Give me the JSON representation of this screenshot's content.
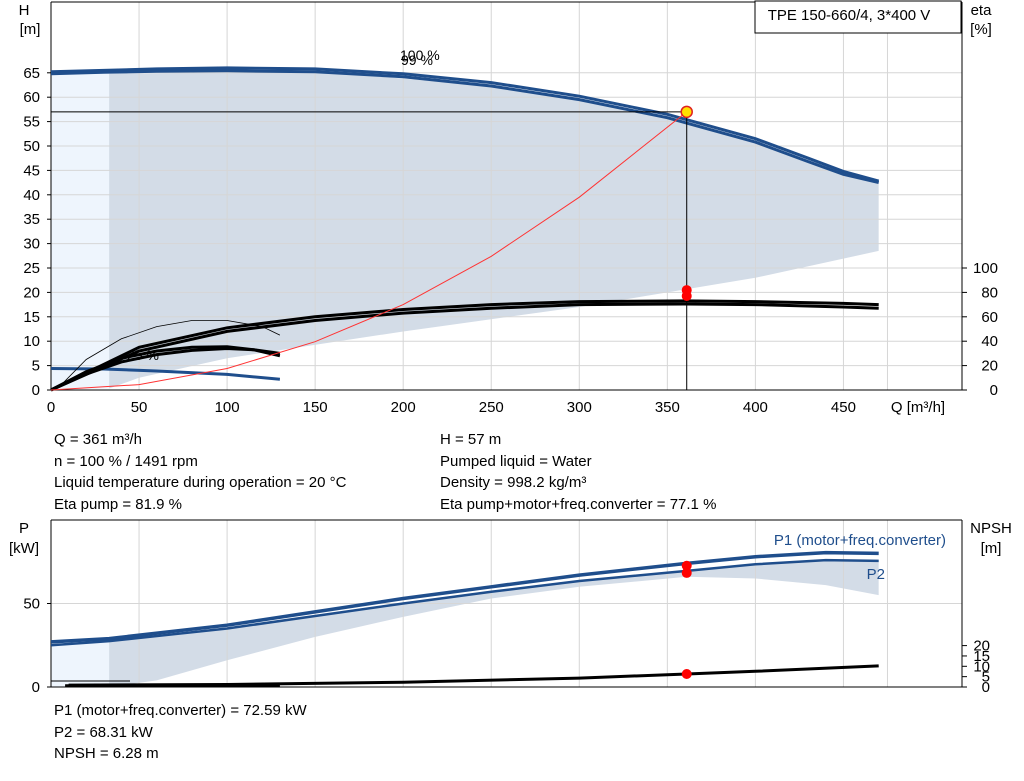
{
  "product_label": "TPE 150-660/4, 3*400 V",
  "colors": {
    "area": "#d3dce7",
    "area_light": "#eef5fd",
    "curve_blue": "#1f4e8c",
    "curve_black": "#000000",
    "system_curve": "#ff3333",
    "duty_marker": "#ff0000",
    "duty_point_fill": "#ffe000",
    "grid": "#d6d6d6"
  },
  "chart_data": [
    {
      "id": "head_eta",
      "type": "line",
      "x_label": "Q [m³/h]",
      "y_left_label_line1": "H",
      "y_left_label_line2": "[m]",
      "y_right_label_line1": "eta",
      "y_right_label_line2": "[%]",
      "x_ticks": [
        "0",
        "50",
        "100",
        "150",
        "200",
        "250",
        "300",
        "350",
        "400",
        "450"
      ],
      "y_left_ticks": [
        "0",
        "5",
        "10",
        "15",
        "20",
        "25",
        "30",
        "35",
        "40",
        "45",
        "50",
        "55",
        "60",
        "65"
      ],
      "y_right_ticks": [
        "0",
        "20",
        "40",
        "60",
        "80",
        "100"
      ],
      "xlim": [
        0,
        500
      ],
      "ylim": [
        0,
        70
      ],
      "grid": true,
      "speed_labels": [
        "100 %",
        "99 %",
        "25 %"
      ],
      "series": [
        {
          "kind": "head",
          "x": [
            0,
            30,
            60,
            100,
            150,
            200,
            250,
            300,
            350,
            400,
            430,
            450,
            470
          ],
          "y": [
            65.2,
            65.5,
            65.8,
            66,
            65.8,
            64.8,
            63,
            60.2,
            56.5,
            51.5,
            47.5,
            44.8,
            42.8
          ]
        },
        {
          "kind": "head",
          "x": [
            0,
            30,
            60,
            100,
            150,
            200,
            250,
            300,
            350,
            400,
            430,
            450,
            470
          ],
          "y": [
            64.8,
            65.1,
            65.3,
            65.4,
            65.2,
            64.2,
            62.3,
            59.5,
            55.8,
            50.8,
            46.8,
            44.2,
            42.5
          ]
        },
        {
          "kind": "head",
          "x": [
            0,
            30,
            60,
            100,
            130
          ],
          "y": [
            4.4,
            4.3,
            3.9,
            3.2,
            2.2
          ]
        },
        {
          "kind": "efficiency",
          "x": [
            0,
            50,
            100,
            150,
            200,
            250,
            300,
            360,
            400,
            450,
            470
          ],
          "y": [
            0,
            35,
            51,
            60,
            66,
            70,
            72.5,
            73,
            72.5,
            71,
            70
          ]
        },
        {
          "kind": "efficiency",
          "x": [
            0,
            50,
            100,
            150,
            200,
            250,
            300,
            360,
            400,
            450,
            470
          ],
          "y": [
            0,
            32,
            48,
            57,
            63,
            67,
            70,
            70.5,
            70,
            68,
            67
          ]
        },
        {
          "kind": "efficiency",
          "x": [
            0,
            20,
            40,
            60,
            80,
            100,
            115,
            130
          ],
          "y": [
            0,
            15,
            26,
            32,
            35,
            35.5,
            33,
            28
          ]
        },
        {
          "kind": "efficiency",
          "x": [
            0,
            20,
            40,
            60,
            80,
            100,
            115,
            130
          ],
          "y": [
            0,
            13,
            23,
            29,
            32.5,
            34,
            33,
            30
          ]
        },
        {
          "kind": "efficiency_outline",
          "x": [
            5,
            20,
            40,
            60,
            80,
            100,
            120,
            130
          ],
          "y": [
            3,
            25,
            42,
            52,
            57,
            57,
            52,
            45
          ]
        },
        {
          "kind": "system_curve",
          "x": [
            0,
            50,
            100,
            150,
            200,
            250,
            300,
            361
          ],
          "y": [
            0,
            1.1,
            4.4,
            9.9,
            17.5,
            27.4,
            39.5,
            57
          ]
        }
      ],
      "duty_point": {
        "x": 361,
        "h": 57,
        "eta_points": [
          81.9,
          77.1
        ]
      },
      "operating_area_upper": {
        "x": [
          33,
          150,
          250,
          300,
          350,
          400,
          450,
          470
        ],
        "y": [
          64.8,
          65.3,
          62.3,
          59.5,
          55.8,
          50.8,
          44.2,
          42.5
        ]
      },
      "operating_area_lower": {
        "x": [
          470,
          400,
          300,
          200,
          100,
          50,
          33
        ],
        "y": [
          28.5,
          23,
          17,
          12,
          6.5,
          2.5,
          0.3
        ]
      }
    },
    {
      "id": "power_npsh",
      "type": "line",
      "y_left_label_line1": "P",
      "y_left_label_line2": "[kW]",
      "y_right_label_line1": "NPSH",
      "y_right_label_line2": "[m]",
      "y_left_ticks": [
        "0",
        "50"
      ],
      "y_right_ticks": [
        "0",
        "5",
        "10",
        "15",
        "20"
      ],
      "xlim": [
        0,
        500
      ],
      "ylim": [
        0,
        90
      ],
      "grid": true,
      "series": [
        {
          "name": "P1 (motor+freq.converter)",
          "kind": "p1",
          "x": [
            0,
            33,
            100,
            150,
            200,
            250,
            300,
            361,
            400,
            440,
            470
          ],
          "y": [
            27,
            29,
            37,
            45,
            53,
            60,
            67,
            74,
            78,
            80.5,
            80
          ]
        },
        {
          "name": "P2",
          "kind": "p2",
          "x": [
            0,
            33,
            100,
            150,
            200,
            250,
            300,
            361,
            400,
            440,
            470
          ],
          "y": [
            25,
            27.5,
            35,
            42.5,
            50,
            57,
            63.5,
            69.5,
            73.5,
            76,
            75.5
          ]
        },
        {
          "kind": "p_low",
          "x": [
            8,
            130
          ],
          "y": [
            0.8,
            0.9
          ]
        },
        {
          "kind": "npsh",
          "x": [
            10,
            100,
            200,
            300,
            361,
            400,
            470
          ],
          "y": [
            0.9,
            1.2,
            2.3,
            4.3,
            6.28,
            7.6,
            10.2
          ]
        }
      ],
      "duty_point": {
        "x": 361,
        "p1": 72.59,
        "p2": 68.31,
        "npsh": 6.28
      }
    }
  ],
  "info_block_1": {
    "left": [
      "Q = 361 m³/h",
      "n = 100 % / 1491 rpm",
      "Liquid temperature during operation = 20 °C",
      "Eta pump = 81.9 %"
    ],
    "right": [
      "H = 57 m",
      "Pumped liquid = Water",
      "Density = 998.2 kg/m³",
      "Eta pump+motor+freq.converter = 77.1 %"
    ]
  },
  "info_block_2": {
    "left": [
      "P1 (motor+freq.converter) = 72.59 kW",
      "P2 = 68.31 kW",
      "NPSH = 6.28 m"
    ]
  }
}
